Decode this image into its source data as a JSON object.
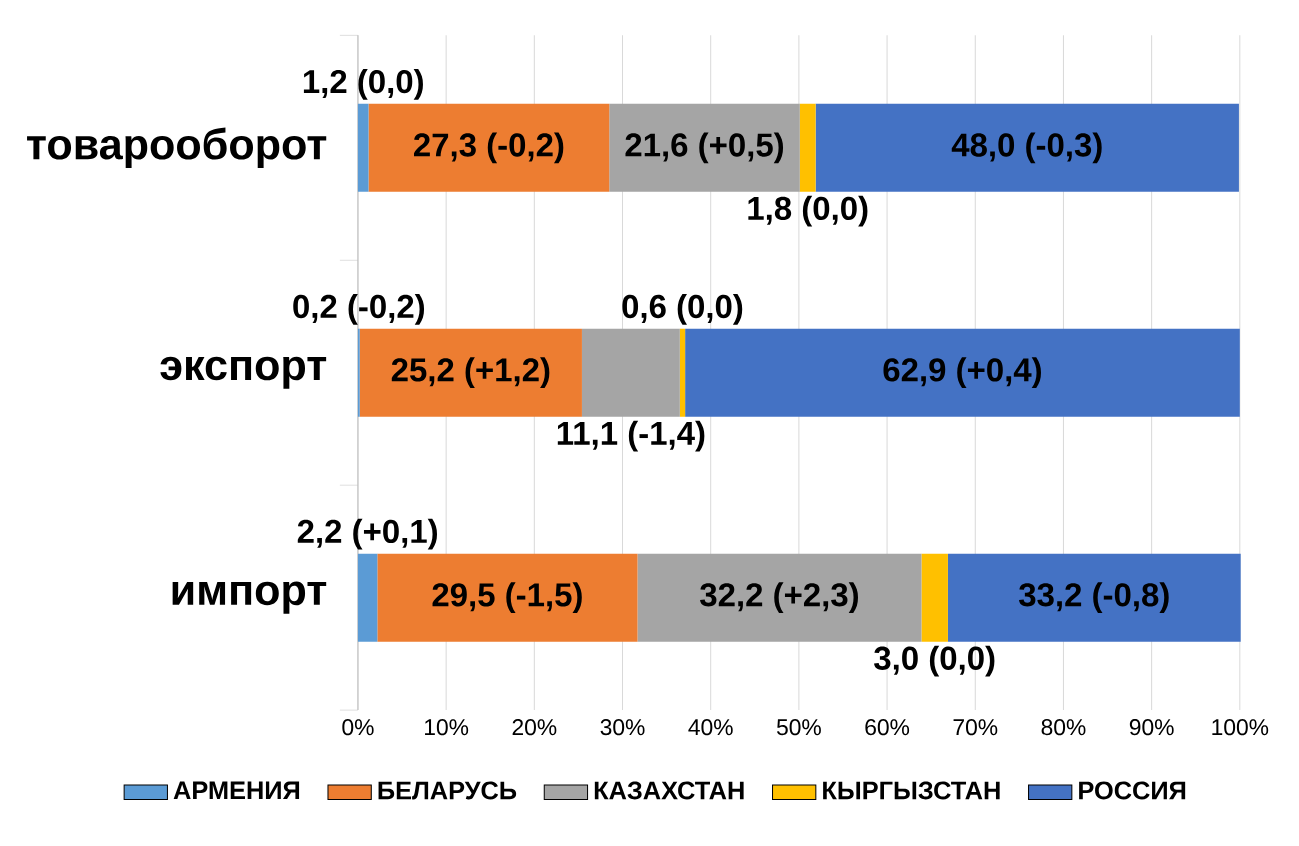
{
  "chart_data": {
    "type": "bar",
    "orientation": "horizontal",
    "stacked": true,
    "categories": [
      "товарооборот",
      "экспорт",
      "импорт"
    ],
    "series": [
      {
        "name": "АРМЕНИЯ",
        "color": "#5b9bd5",
        "values": [
          1.2,
          0.2,
          2.2
        ],
        "value_labels": [
          "1,2 (0,0)",
          "0,2 (-0,2)",
          "2,2 (+0,1)"
        ]
      },
      {
        "name": "БЕЛАРУСЬ",
        "color": "#ed7d31",
        "values": [
          27.3,
          25.2,
          29.5
        ],
        "value_labels": [
          "27,3 (-0,2)",
          "25,2 (+1,2)",
          "29,5 (-1,5)"
        ]
      },
      {
        "name": "КАЗАХСТАН",
        "color": "#a5a5a5",
        "values": [
          21.6,
          11.1,
          32.2
        ],
        "value_labels": [
          "21,6 (+0,5)",
          "11,1 (-1,4)",
          "32,2 (+2,3)"
        ]
      },
      {
        "name": "КЫРГЫЗСТАН",
        "color": "#ffc000",
        "values": [
          1.8,
          0.6,
          3.0
        ],
        "value_labels": [
          "1,8 (0,0)",
          "0,6 (0,0)",
          "3,0 (0,0)"
        ]
      },
      {
        "name": "РОССИЯ",
        "color": "#4472c4",
        "values": [
          48.0,
          62.9,
          33.2
        ],
        "value_labels": [
          "48,0 (-0,3)",
          "62,9 (+0,4)",
          "33,2 (-0,8)"
        ]
      }
    ],
    "xlim": [
      0,
      100
    ],
    "xticks": [
      {
        "value": 0,
        "label": "0%"
      },
      {
        "value": 10,
        "label": "10%"
      },
      {
        "value": 20,
        "label": "20%"
      },
      {
        "value": 30,
        "label": "30%"
      },
      {
        "value": 40,
        "label": "40%"
      },
      {
        "value": 50,
        "label": "50%"
      },
      {
        "value": 60,
        "label": "60%"
      },
      {
        "value": 70,
        "label": "70%"
      },
      {
        "value": 80,
        "label": "80%"
      },
      {
        "value": 90,
        "label": "90%"
      },
      {
        "value": 100,
        "label": "100%"
      }
    ],
    "grid": "x",
    "legend": "bottom"
  }
}
